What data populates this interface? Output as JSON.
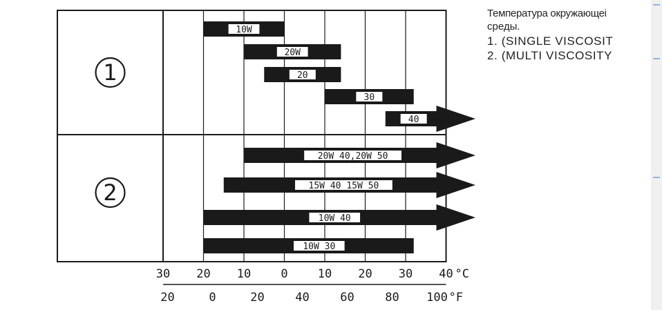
{
  "side_panel": {
    "caption_line1": "Температура окружающеі",
    "caption_line2": "среды.",
    "items": [
      "1. (SINGLE VISCOSIT",
      "2. (MULTI VISCOSITY"
    ]
  },
  "chart_data": {
    "type": "bar",
    "subtype": "range-bars",
    "title": "",
    "xlabel": "",
    "ylabel": "",
    "grid": true,
    "x_axis_celsius": {
      "unit": "°C",
      "ticks": [
        -30,
        -20,
        -10,
        0,
        10,
        20,
        30,
        40
      ],
      "tick_labels": [
        "30",
        "20",
        "10",
        "0",
        "10",
        "20",
        "30",
        "40"
      ],
      "unit_label": "°C"
    },
    "x_axis_fahrenheit": {
      "unit": "°F",
      "ticks": [
        -20,
        0,
        20,
        40,
        60,
        80,
        100
      ],
      "tick_labels": [
        "20",
        "0",
        "20",
        "40",
        "60",
        "80",
        "100"
      ],
      "unit_label": "°F"
    },
    "groups": [
      {
        "label": "1",
        "bars": [
          {
            "label": "10W",
            "min": -20,
            "max": 0,
            "open_ended": false
          },
          {
            "label": "20W",
            "min": -10,
            "max": 14,
            "open_ended": false
          },
          {
            "label": "20",
            "min": -5,
            "max": 14,
            "open_ended": false
          },
          {
            "label": "30",
            "min": 10,
            "max": 32,
            "open_ended": false
          },
          {
            "label": "40",
            "min": 25,
            "max": 40,
            "open_ended": true
          }
        ]
      },
      {
        "label": "2",
        "bars": [
          {
            "label": "20W 40,20W 50",
            "min": -10,
            "max": 40,
            "open_ended": true
          },
          {
            "label": "15W 40 15W 50",
            "min": -15,
            "max": 40,
            "open_ended": true
          },
          {
            "label": "10W 40",
            "min": -20,
            "max": 40,
            "open_ended": true
          },
          {
            "label": "10W 30",
            "min": -20,
            "max": 32,
            "open_ended": false
          }
        ]
      }
    ],
    "colors": {
      "bar": "#1a1a1a",
      "label_box": "#ffffff",
      "grid": "#1a1a1a"
    }
  }
}
